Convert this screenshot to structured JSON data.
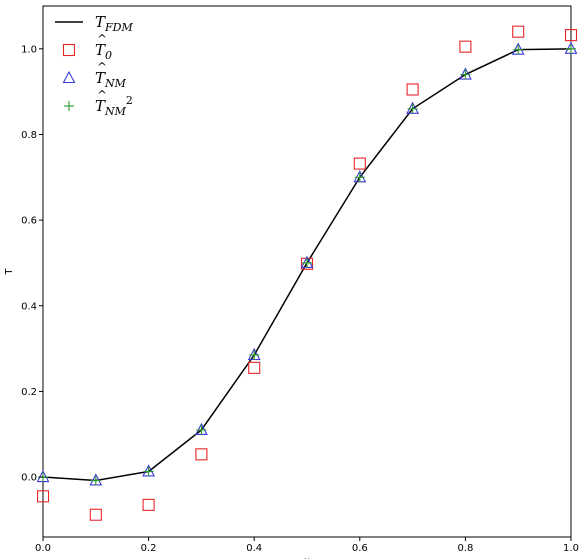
{
  "chart_data": {
    "type": "line+scatter",
    "xlabel": "x",
    "ylabel": "T",
    "xlim": [
      0.0,
      1.0
    ],
    "ylim": [
      -0.14,
      1.1
    ],
    "xticks": [
      "0.0",
      "0.2",
      "0.4",
      "0.6",
      "0.8",
      "1.0"
    ],
    "yticks": [
      "0.0",
      "0.2",
      "0.4",
      "0.6",
      "0.8",
      "1.0"
    ],
    "xtick_values": [
      0.0,
      0.2,
      0.4,
      0.6,
      0.8,
      1.0
    ],
    "ytick_values": [
      0.0,
      0.2,
      0.4,
      0.6,
      0.8,
      1.0
    ],
    "grid": false,
    "legend_position": "top-left",
    "x": [
      0.0,
      0.1,
      0.2,
      0.3,
      0.4,
      0.5,
      0.6,
      0.7,
      0.8,
      0.9,
      1.0
    ],
    "series": [
      {
        "name_base": "T",
        "name_sub": "FDM",
        "name_sup": "",
        "hat": false,
        "marker": "line",
        "color": "#000000",
        "values": [
          0.0,
          -0.008,
          0.013,
          0.11,
          0.285,
          0.5,
          0.7,
          0.86,
          0.94,
          0.998,
          1.0
        ]
      },
      {
        "name_base": "T",
        "name_sub": "0",
        "name_sup": "",
        "hat": true,
        "marker": "square",
        "color": "#e8262a",
        "values": [
          -0.045,
          -0.088,
          -0.065,
          0.053,
          0.255,
          0.498,
          0.732,
          0.905,
          1.005,
          1.04,
          1.032
        ]
      },
      {
        "name_base": "T",
        "name_sub": "NM",
        "name_sup": "",
        "hat": true,
        "marker": "triangle",
        "color": "#3a3ad6",
        "values": [
          0.0,
          -0.008,
          0.013,
          0.11,
          0.285,
          0.5,
          0.7,
          0.86,
          0.94,
          0.998,
          1.0
        ]
      },
      {
        "name_base": "T",
        "name_sub": "NM",
        "name_sup": "2",
        "hat": true,
        "marker": "plus",
        "color": "#2a9a2a",
        "values": [
          0.0,
          -0.008,
          0.013,
          0.11,
          0.285,
          0.5,
          0.7,
          0.86,
          0.94,
          0.998,
          1.0
        ]
      }
    ]
  }
}
